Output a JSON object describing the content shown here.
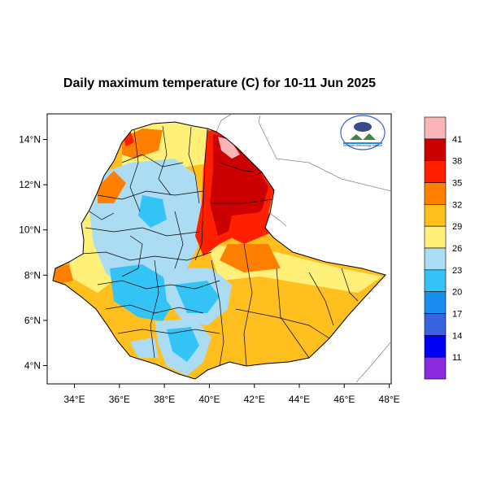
{
  "title": "Daily maximum temperature (C) for 10-11 Jun 2025",
  "map": {
    "region": "Ethiopia",
    "lon_range": [
      33,
      48
    ],
    "lat_range": [
      3.2,
      15
    ],
    "lon_ticks": [
      "34°E",
      "36°E",
      "38°E",
      "40°E",
      "42°E",
      "44°E",
      "46°E",
      "48°E"
    ],
    "lat_ticks": [
      "4°N",
      "6°N",
      "8°N",
      "10°N",
      "12°N",
      "14°N"
    ],
    "logo": {
      "caption": "Ethiopian Meteorology Institute"
    }
  },
  "colorbar": {
    "labels": [
      "41",
      "38",
      "35",
      "32",
      "29",
      "26",
      "23",
      "20",
      "17",
      "14",
      "11"
    ],
    "colors": [
      "#f9b5b8",
      "#cc0000",
      "#ff2000",
      "#ff8000",
      "#ffbf1f",
      "#fff07a",
      "#acdcf3",
      "#33c4f5",
      "#1a8ef0",
      "#3763e0",
      "#0000f5",
      "#8a2be2"
    ]
  },
  "colors": {
    "cool_light": "#acdcf3",
    "cool_mid": "#33c4f5",
    "cool_dark": "#1a8ef0",
    "warm_light": "#fff07a",
    "warm_mid": "#ffbf1f",
    "warm_orange": "#ff8000",
    "hot_red": "#ff2000",
    "hot_dark": "#cc0000",
    "hot_pink": "#f9b5b8"
  }
}
